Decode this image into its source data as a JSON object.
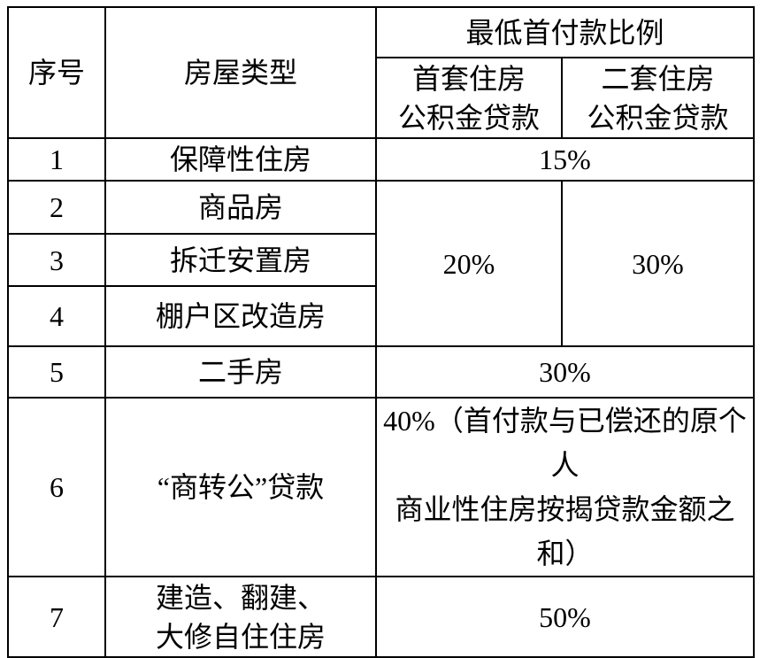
{
  "table": {
    "title_semantic": "housing-provident-fund-minimum-down-payment-ratios",
    "colors": {
      "border": "#000000",
      "text": "#000000",
      "background": "#ffffff"
    },
    "header": {
      "col_no": "序号",
      "col_type": "房屋类型",
      "ratio_group": "最低首付款比例",
      "first_home_line1": "首套住房",
      "first_home_line2": "公积金贷款",
      "second_home_line1": "二套住房",
      "second_home_line2": "公积金贷款"
    },
    "rows": {
      "r1": {
        "no": "1",
        "type": "保障性住房",
        "value": "15%"
      },
      "r2": {
        "no": "2",
        "type": "商品房",
        "first_value": "20%",
        "second_value": "30%"
      },
      "r3": {
        "no": "3",
        "type": "拆迁安置房"
      },
      "r4": {
        "no": "4",
        "type": "棚户区改造房"
      },
      "r5": {
        "no": "5",
        "type": "二手房",
        "value": "30%"
      },
      "r6": {
        "no": "6",
        "type": "“商转公”贷款",
        "value_line1": "40%（首付款与已偿还的原个人",
        "value_line2": "商业性住房按揭贷款金额之和）"
      },
      "r7": {
        "no": "7",
        "type_line1": "建造、翻建、",
        "type_line2": "大修自住住房",
        "value": "50%"
      }
    }
  }
}
